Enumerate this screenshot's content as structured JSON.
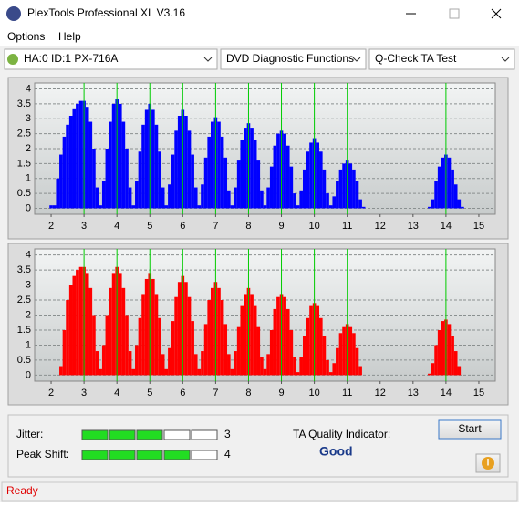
{
  "window": {
    "title": "PlexTools Professional XL V3.16"
  },
  "menu": [
    "Options",
    "Help"
  ],
  "toolbar": {
    "drive": "HA:0 ID:1  PX-716A",
    "function": "DVD Diagnostic Functions",
    "test": "Q-Check TA Test"
  },
  "chart_data": [
    {
      "type": "bar",
      "color": "#0000ff",
      "xlim": [
        1.5,
        15.5
      ],
      "ylim": [
        -0.2,
        4.2
      ],
      "xticks": [
        2,
        3,
        4,
        5,
        6,
        7,
        8,
        9,
        10,
        11,
        12,
        13,
        14,
        15
      ],
      "yticks": [
        0,
        0.5,
        1,
        1.5,
        2,
        2.5,
        3,
        3.5,
        4
      ],
      "grid": true,
      "markers": [
        3,
        4,
        5,
        6,
        7,
        8,
        9,
        10,
        11,
        14
      ],
      "marker_color": "#00cc00",
      "x": [
        2.0,
        2.1,
        2.2,
        2.3,
        2.4,
        2.5,
        2.6,
        2.7,
        2.8,
        2.9,
        3.0,
        3.1,
        3.2,
        3.3,
        3.4,
        3.5,
        3.6,
        3.7,
        3.8,
        3.9,
        4.0,
        4.1,
        4.2,
        4.3,
        4.4,
        4.5,
        4.6,
        4.7,
        4.8,
        4.9,
        5.0,
        5.1,
        5.2,
        5.3,
        5.4,
        5.5,
        5.6,
        5.7,
        5.8,
        5.9,
        6.0,
        6.1,
        6.2,
        6.3,
        6.4,
        6.5,
        6.6,
        6.7,
        6.8,
        6.9,
        7.0,
        7.1,
        7.2,
        7.3,
        7.4,
        7.5,
        7.6,
        7.7,
        7.8,
        7.9,
        8.0,
        8.1,
        8.2,
        8.3,
        8.4,
        8.5,
        8.6,
        8.7,
        8.8,
        8.9,
        9.0,
        9.1,
        9.2,
        9.3,
        9.4,
        9.5,
        9.6,
        9.7,
        9.8,
        9.9,
        10.0,
        10.1,
        10.2,
        10.3,
        10.4,
        10.5,
        10.6,
        10.7,
        10.8,
        10.9,
        11.0,
        11.1,
        11.2,
        11.3,
        11.4,
        11.5,
        13.5,
        13.6,
        13.7,
        13.8,
        13.9,
        14.0,
        14.1,
        14.2,
        14.3,
        14.4,
        14.5
      ],
      "values": [
        0.1,
        0.1,
        1.0,
        1.8,
        2.4,
        2.8,
        3.1,
        3.35,
        3.5,
        3.6,
        3.6,
        3.4,
        2.9,
        2.0,
        0.7,
        0.1,
        0.9,
        2.0,
        2.9,
        3.5,
        3.65,
        3.5,
        2.9,
        2.0,
        0.7,
        0.1,
        0.9,
        1.9,
        2.8,
        3.3,
        3.5,
        3.3,
        2.8,
        1.9,
        0.7,
        0.1,
        0.8,
        1.8,
        2.6,
        3.1,
        3.3,
        3.1,
        2.6,
        1.8,
        0.7,
        0.1,
        0.8,
        1.7,
        2.4,
        2.9,
        3.05,
        2.9,
        2.4,
        1.7,
        0.6,
        0.1,
        0.7,
        1.6,
        2.3,
        2.7,
        2.85,
        2.7,
        2.3,
        1.6,
        0.6,
        0.1,
        0.7,
        1.4,
        2.1,
        2.5,
        2.6,
        2.5,
        2.1,
        1.4,
        0.5,
        0.1,
        0.6,
        1.3,
        1.9,
        2.2,
        2.35,
        2.2,
        1.9,
        1.3,
        0.5,
        0.1,
        0.4,
        0.9,
        1.3,
        1.5,
        1.6,
        1.5,
        1.3,
        0.9,
        0.3,
        0.05,
        0.05,
        0.3,
        0.9,
        1.4,
        1.7,
        1.8,
        1.7,
        1.3,
        0.8,
        0.3,
        0.05
      ]
    },
    {
      "type": "bar",
      "color": "#ff0000",
      "xlim": [
        1.5,
        15.5
      ],
      "ylim": [
        -0.2,
        4.2
      ],
      "xticks": [
        2,
        3,
        4,
        5,
        6,
        7,
        8,
        9,
        10,
        11,
        12,
        13,
        14,
        15
      ],
      "yticks": [
        0,
        0.5,
        1,
        1.5,
        2,
        2.5,
        3,
        3.5,
        4
      ],
      "grid": true,
      "markers": [
        3,
        4,
        5,
        6,
        7,
        8,
        9,
        10,
        11,
        14
      ],
      "marker_color": "#00cc00",
      "x": [
        2.0,
        2.1,
        2.2,
        2.3,
        2.4,
        2.5,
        2.6,
        2.7,
        2.8,
        2.9,
        3.0,
        3.1,
        3.2,
        3.3,
        3.4,
        3.5,
        3.6,
        3.7,
        3.8,
        3.9,
        4.0,
        4.1,
        4.2,
        4.3,
        4.4,
        4.5,
        4.6,
        4.7,
        4.8,
        4.9,
        5.0,
        5.1,
        5.2,
        5.3,
        5.4,
        5.5,
        5.6,
        5.7,
        5.8,
        5.9,
        6.0,
        6.1,
        6.2,
        6.3,
        6.4,
        6.5,
        6.6,
        6.7,
        6.8,
        6.9,
        7.0,
        7.1,
        7.2,
        7.3,
        7.4,
        7.5,
        7.6,
        7.7,
        7.8,
        7.9,
        8.0,
        8.1,
        8.2,
        8.3,
        8.4,
        8.5,
        8.6,
        8.7,
        8.8,
        8.9,
        9.0,
        9.1,
        9.2,
        9.3,
        9.4,
        9.5,
        9.6,
        9.7,
        9.8,
        9.9,
        10.0,
        10.1,
        10.2,
        10.3,
        10.4,
        10.5,
        10.6,
        10.7,
        10.8,
        10.9,
        11.0,
        11.1,
        11.2,
        11.3,
        11.4,
        11.5,
        13.5,
        13.6,
        13.7,
        13.8,
        13.9,
        14.0,
        14.1,
        14.2,
        14.3,
        14.4,
        14.5
      ],
      "values": [
        0,
        0,
        0,
        0.3,
        1.5,
        2.5,
        3.0,
        3.3,
        3.5,
        3.6,
        3.6,
        3.4,
        2.9,
        2.0,
        0.8,
        0.2,
        1.0,
        2.0,
        2.9,
        3.4,
        3.6,
        3.4,
        2.9,
        2.0,
        0.8,
        0.2,
        1.0,
        1.9,
        2.7,
        3.2,
        3.4,
        3.2,
        2.7,
        1.9,
        0.7,
        0.2,
        0.9,
        1.8,
        2.6,
        3.1,
        3.3,
        3.1,
        2.6,
        1.8,
        0.7,
        0.2,
        0.8,
        1.7,
        2.5,
        2.9,
        3.1,
        2.9,
        2.5,
        1.7,
        0.7,
        0.2,
        0.8,
        1.6,
        2.3,
        2.7,
        2.9,
        2.7,
        2.3,
        1.6,
        0.6,
        0.2,
        0.7,
        1.5,
        2.2,
        2.6,
        2.7,
        2.6,
        2.2,
        1.5,
        0.6,
        0.1,
        0.6,
        1.3,
        1.9,
        2.3,
        2.4,
        2.3,
        1.9,
        1.3,
        0.5,
        0.1,
        0.4,
        0.9,
        1.4,
        1.6,
        1.7,
        1.6,
        1.4,
        0.9,
        0.3,
        0,
        0.05,
        0.4,
        1.0,
        1.5,
        1.8,
        1.85,
        1.7,
        1.3,
        0.8,
        0.3,
        0
      ]
    }
  ],
  "jitter": {
    "label": "Jitter:",
    "value": 3
  },
  "peak_shift": {
    "label": "Peak Shift:",
    "value": 4
  },
  "quality": {
    "label": "TA Quality Indicator:",
    "value": "Good"
  },
  "start": "Start",
  "status": "Ready"
}
